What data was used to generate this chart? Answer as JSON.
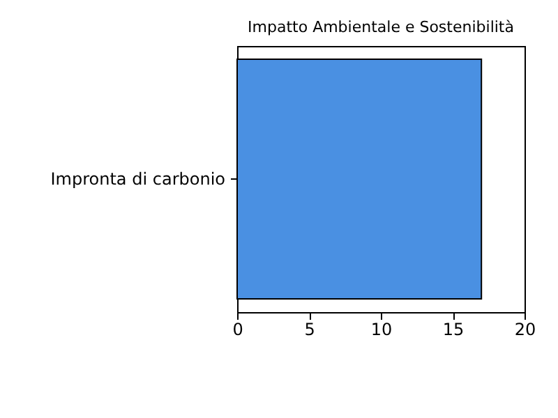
{
  "chart_data": {
    "type": "bar",
    "orientation": "horizontal",
    "title": "Impatto Ambientale e Sostenibilità",
    "categories": [
      "Impronta di carbonio"
    ],
    "values": [
      17
    ],
    "color": "#4a90e2",
    "xlim": [
      0,
      20
    ],
    "xticks": [
      0,
      5,
      10,
      15,
      20
    ],
    "grid": false
  }
}
